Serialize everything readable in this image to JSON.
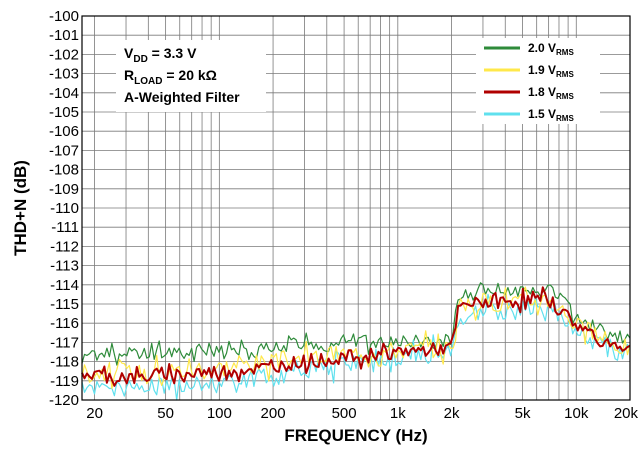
{
  "chart_data": {
    "type": "line",
    "xlabel": "FREQUENCY (Hz)",
    "ylabel": "THD+N (dB)",
    "xscale": "log",
    "xlim": [
      17,
      20000
    ],
    "ylim": [
      -120,
      -100
    ],
    "y_ticks": [
      "-100",
      "-101",
      "-102",
      "-103",
      "-104",
      "-105",
      "-106",
      "-107",
      "-108",
      "-109",
      "-110",
      "-111",
      "-112",
      "-113",
      "-114",
      "-115",
      "-116",
      "-117",
      "-118",
      "-119",
      "-120"
    ],
    "x_ticks": [
      {
        "value": 20,
        "label": "20"
      },
      {
        "value": 50,
        "label": "50"
      },
      {
        "value": 100,
        "label": "100"
      },
      {
        "value": 200,
        "label": "200"
      },
      {
        "value": 500,
        "label": "500"
      },
      {
        "value": 1000,
        "label": "1k"
      },
      {
        "value": 2000,
        "label": "2k"
      },
      {
        "value": 5000,
        "label": "5k"
      },
      {
        "value": 10000,
        "label": "10k"
      },
      {
        "value": 20000,
        "label": "20k"
      }
    ],
    "grid": true,
    "legend_position": "top-right",
    "annotations": {
      "vdd": {
        "main": "V",
        "sub": "DD",
        "rest": " = 3.3 V"
      },
      "rload": {
        "main": "R",
        "sub": "LOAD",
        "rest": " = 20 kΩ"
      },
      "filter": "A-Weighted Filter"
    },
    "series": [
      {
        "name": "2.0 V",
        "name_sub": "RMS",
        "color": "#2e8b3a",
        "x": [
          17,
          25,
          35,
          50,
          70,
          100,
          150,
          200,
          250,
          300,
          400,
          500,
          700,
          1000,
          1500,
          2000,
          2200,
          3000,
          4000,
          5000,
          7000,
          8000,
          10000,
          12000,
          15000,
          20000
        ],
        "y": [
          -117.8,
          -117.5,
          -117.6,
          -117.6,
          -117.3,
          -117.4,
          -117.6,
          -117.2,
          -117.1,
          -117.0,
          -117.3,
          -116.8,
          -117.0,
          -116.9,
          -117.0,
          -116.8,
          -114.6,
          -114.2,
          -114.3,
          -114.4,
          -114.2,
          -114.6,
          -115.6,
          -116.0,
          -116.6,
          -116.9
        ]
      },
      {
        "name": "1.9 V",
        "name_sub": "RMS",
        "color": "#ffe84a",
        "x": [
          17,
          25,
          35,
          50,
          70,
          100,
          150,
          200,
          250,
          300,
          400,
          500,
          700,
          1000,
          1500,
          2000,
          2200,
          3000,
          4000,
          5000,
          7000,
          8000,
          10000,
          12000,
          15000,
          20000
        ],
        "y": [
          -118.6,
          -118.5,
          -118.6,
          -118.4,
          -118.5,
          -118.3,
          -118.1,
          -118.1,
          -117.8,
          -117.9,
          -117.7,
          -117.6,
          -117.5,
          -117.4,
          -117.3,
          -117.3,
          -115.2,
          -114.9,
          -114.9,
          -114.9,
          -114.7,
          -115.1,
          -116.1,
          -116.5,
          -117.0,
          -117.3
        ]
      },
      {
        "name": "1.8 V",
        "name_sub": "RMS",
        "color": "#b00000",
        "x": [
          17,
          25,
          35,
          50,
          70,
          100,
          150,
          200,
          250,
          300,
          400,
          500,
          700,
          1000,
          1500,
          2000,
          2200,
          3000,
          4000,
          5000,
          7000,
          8000,
          10000,
          12000,
          15000,
          20000
        ],
        "y": [
          -118.6,
          -118.8,
          -118.9,
          -118.6,
          -118.7,
          -118.5,
          -118.4,
          -118.3,
          -118.1,
          -118.0,
          -117.9,
          -117.8,
          -117.6,
          -117.5,
          -117.4,
          -117.3,
          -115.2,
          -114.9,
          -114.9,
          -114.8,
          -114.8,
          -115.2,
          -116.1,
          -116.5,
          -117.0,
          -117.3
        ]
      },
      {
        "name": "1.5 V",
        "name_sub": "RMS",
        "color": "#5fe0ee",
        "x": [
          17,
          25,
          35,
          50,
          70,
          100,
          150,
          200,
          250,
          300,
          400,
          500,
          700,
          1000,
          1500,
          2000,
          2200,
          3000,
          4000,
          5000,
          7000,
          8000,
          10000,
          12000,
          15000,
          20000
        ],
        "y": [
          -119.3,
          -119.4,
          -119.2,
          -119.3,
          -119.3,
          -119.1,
          -118.9,
          -118.8,
          -118.5,
          -118.4,
          -118.2,
          -118.0,
          -117.9,
          -117.7,
          -117.6,
          -117.5,
          -115.6,
          -115.4,
          -115.4,
          -115.3,
          -115.3,
          -115.6,
          -116.5,
          -116.8,
          -117.3,
          -117.6
        ]
      }
    ]
  }
}
